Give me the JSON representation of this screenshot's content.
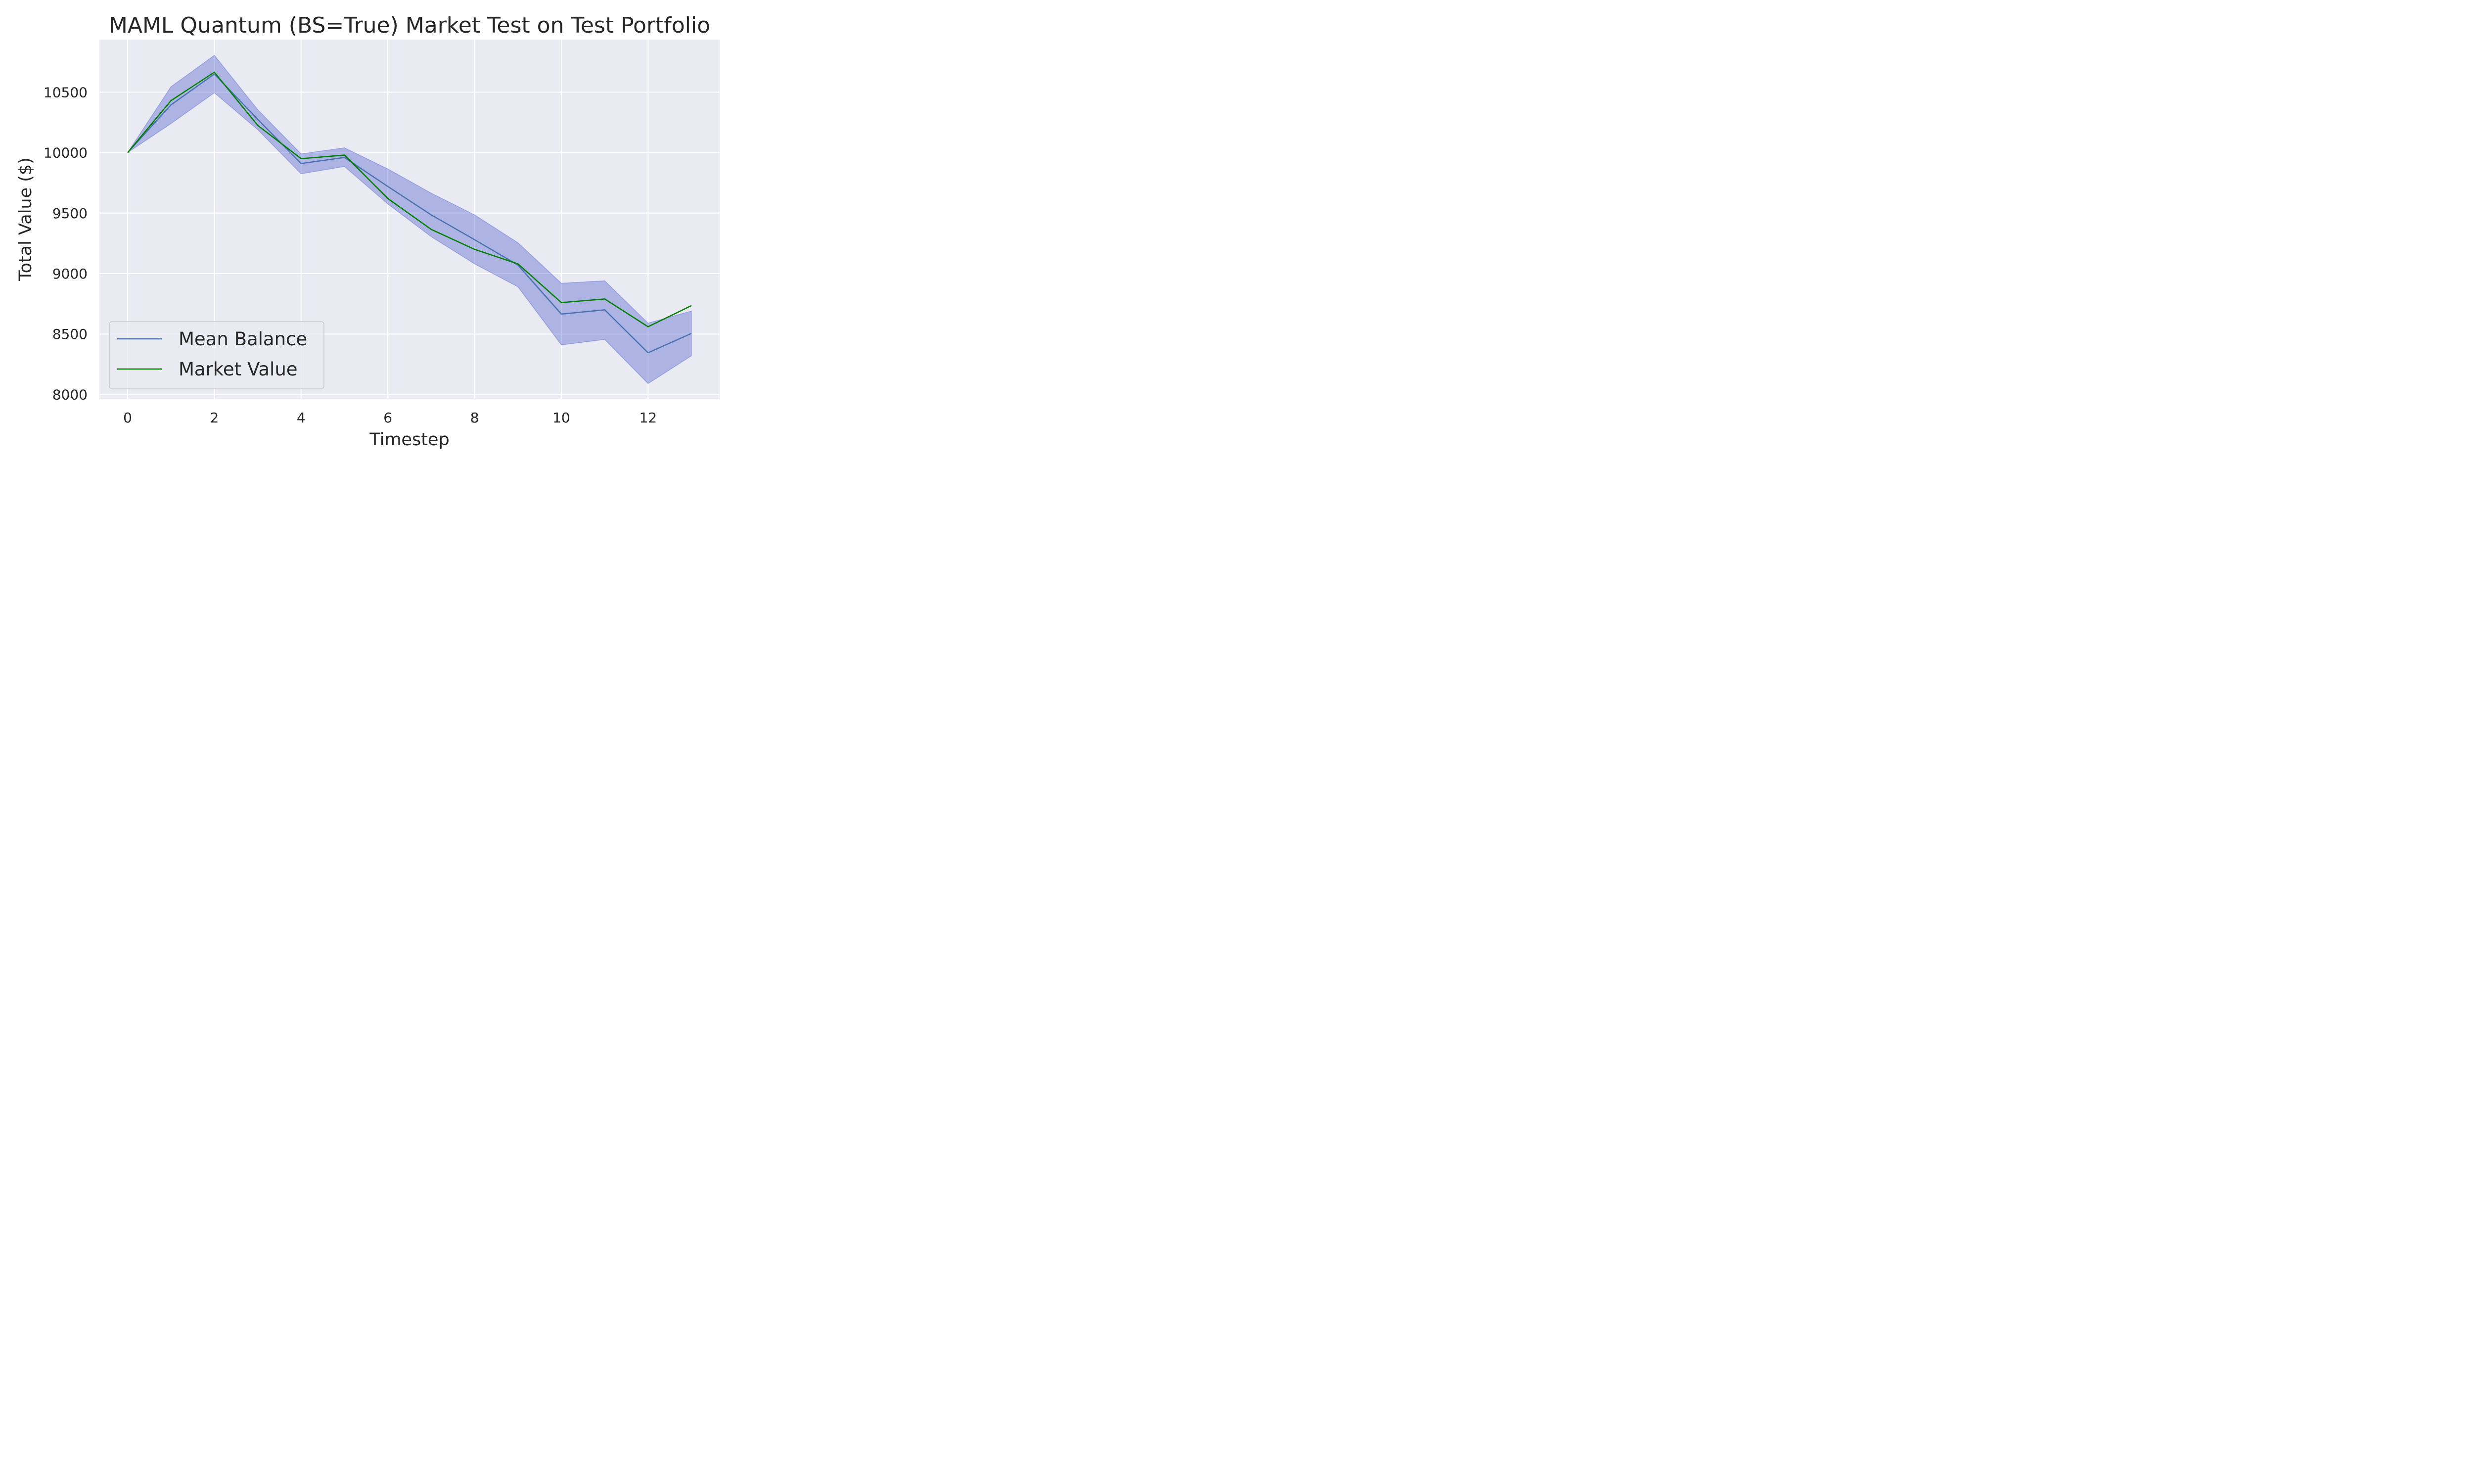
{
  "chart_data": {
    "type": "line",
    "title": "MAML Quantum (BS=True) Market Test on Test Portfolio",
    "xlabel": "Timestep",
    "ylabel": "Total Value ($)",
    "x": [
      0,
      1,
      2,
      3,
      4,
      5,
      6,
      7,
      8,
      9,
      10,
      11,
      12,
      13
    ],
    "xlim": [
      -0.65,
      13.65
    ],
    "ylim": [
      7965,
      10935
    ],
    "xticks": [
      0,
      2,
      4,
      6,
      8,
      10,
      12
    ],
    "yticks": [
      8000,
      8500,
      9000,
      9500,
      10000,
      10500
    ],
    "grid": true,
    "background": "#eaeaf2",
    "legend_position": "lower-left",
    "band": {
      "color": "#3c50c8",
      "upper": [
        10000,
        10545,
        10805,
        10355,
        9990,
        10040,
        9865,
        9665,
        9485,
        9255,
        8920,
        8940,
        8590,
        8690
      ],
      "lower": [
        10000,
        10240,
        10495,
        10190,
        9825,
        9885,
        9575,
        9305,
        9080,
        8890,
        8410,
        8455,
        8090,
        8320
      ]
    },
    "series": [
      {
        "name": "Mean Balance",
        "color": "#4c72b0",
        "values": [
          10000,
          10395,
          10650,
          10275,
          9910,
          9960,
          9720,
          9485,
          9280,
          9070,
          8665,
          8700,
          8345,
          8505
        ]
      },
      {
        "name": "Market Value",
        "color": "#008000",
        "values": [
          10000,
          10430,
          10665,
          10225,
          9950,
          9980,
          9620,
          9365,
          9200,
          9080,
          8760,
          8790,
          8560,
          8735
        ]
      }
    ]
  }
}
